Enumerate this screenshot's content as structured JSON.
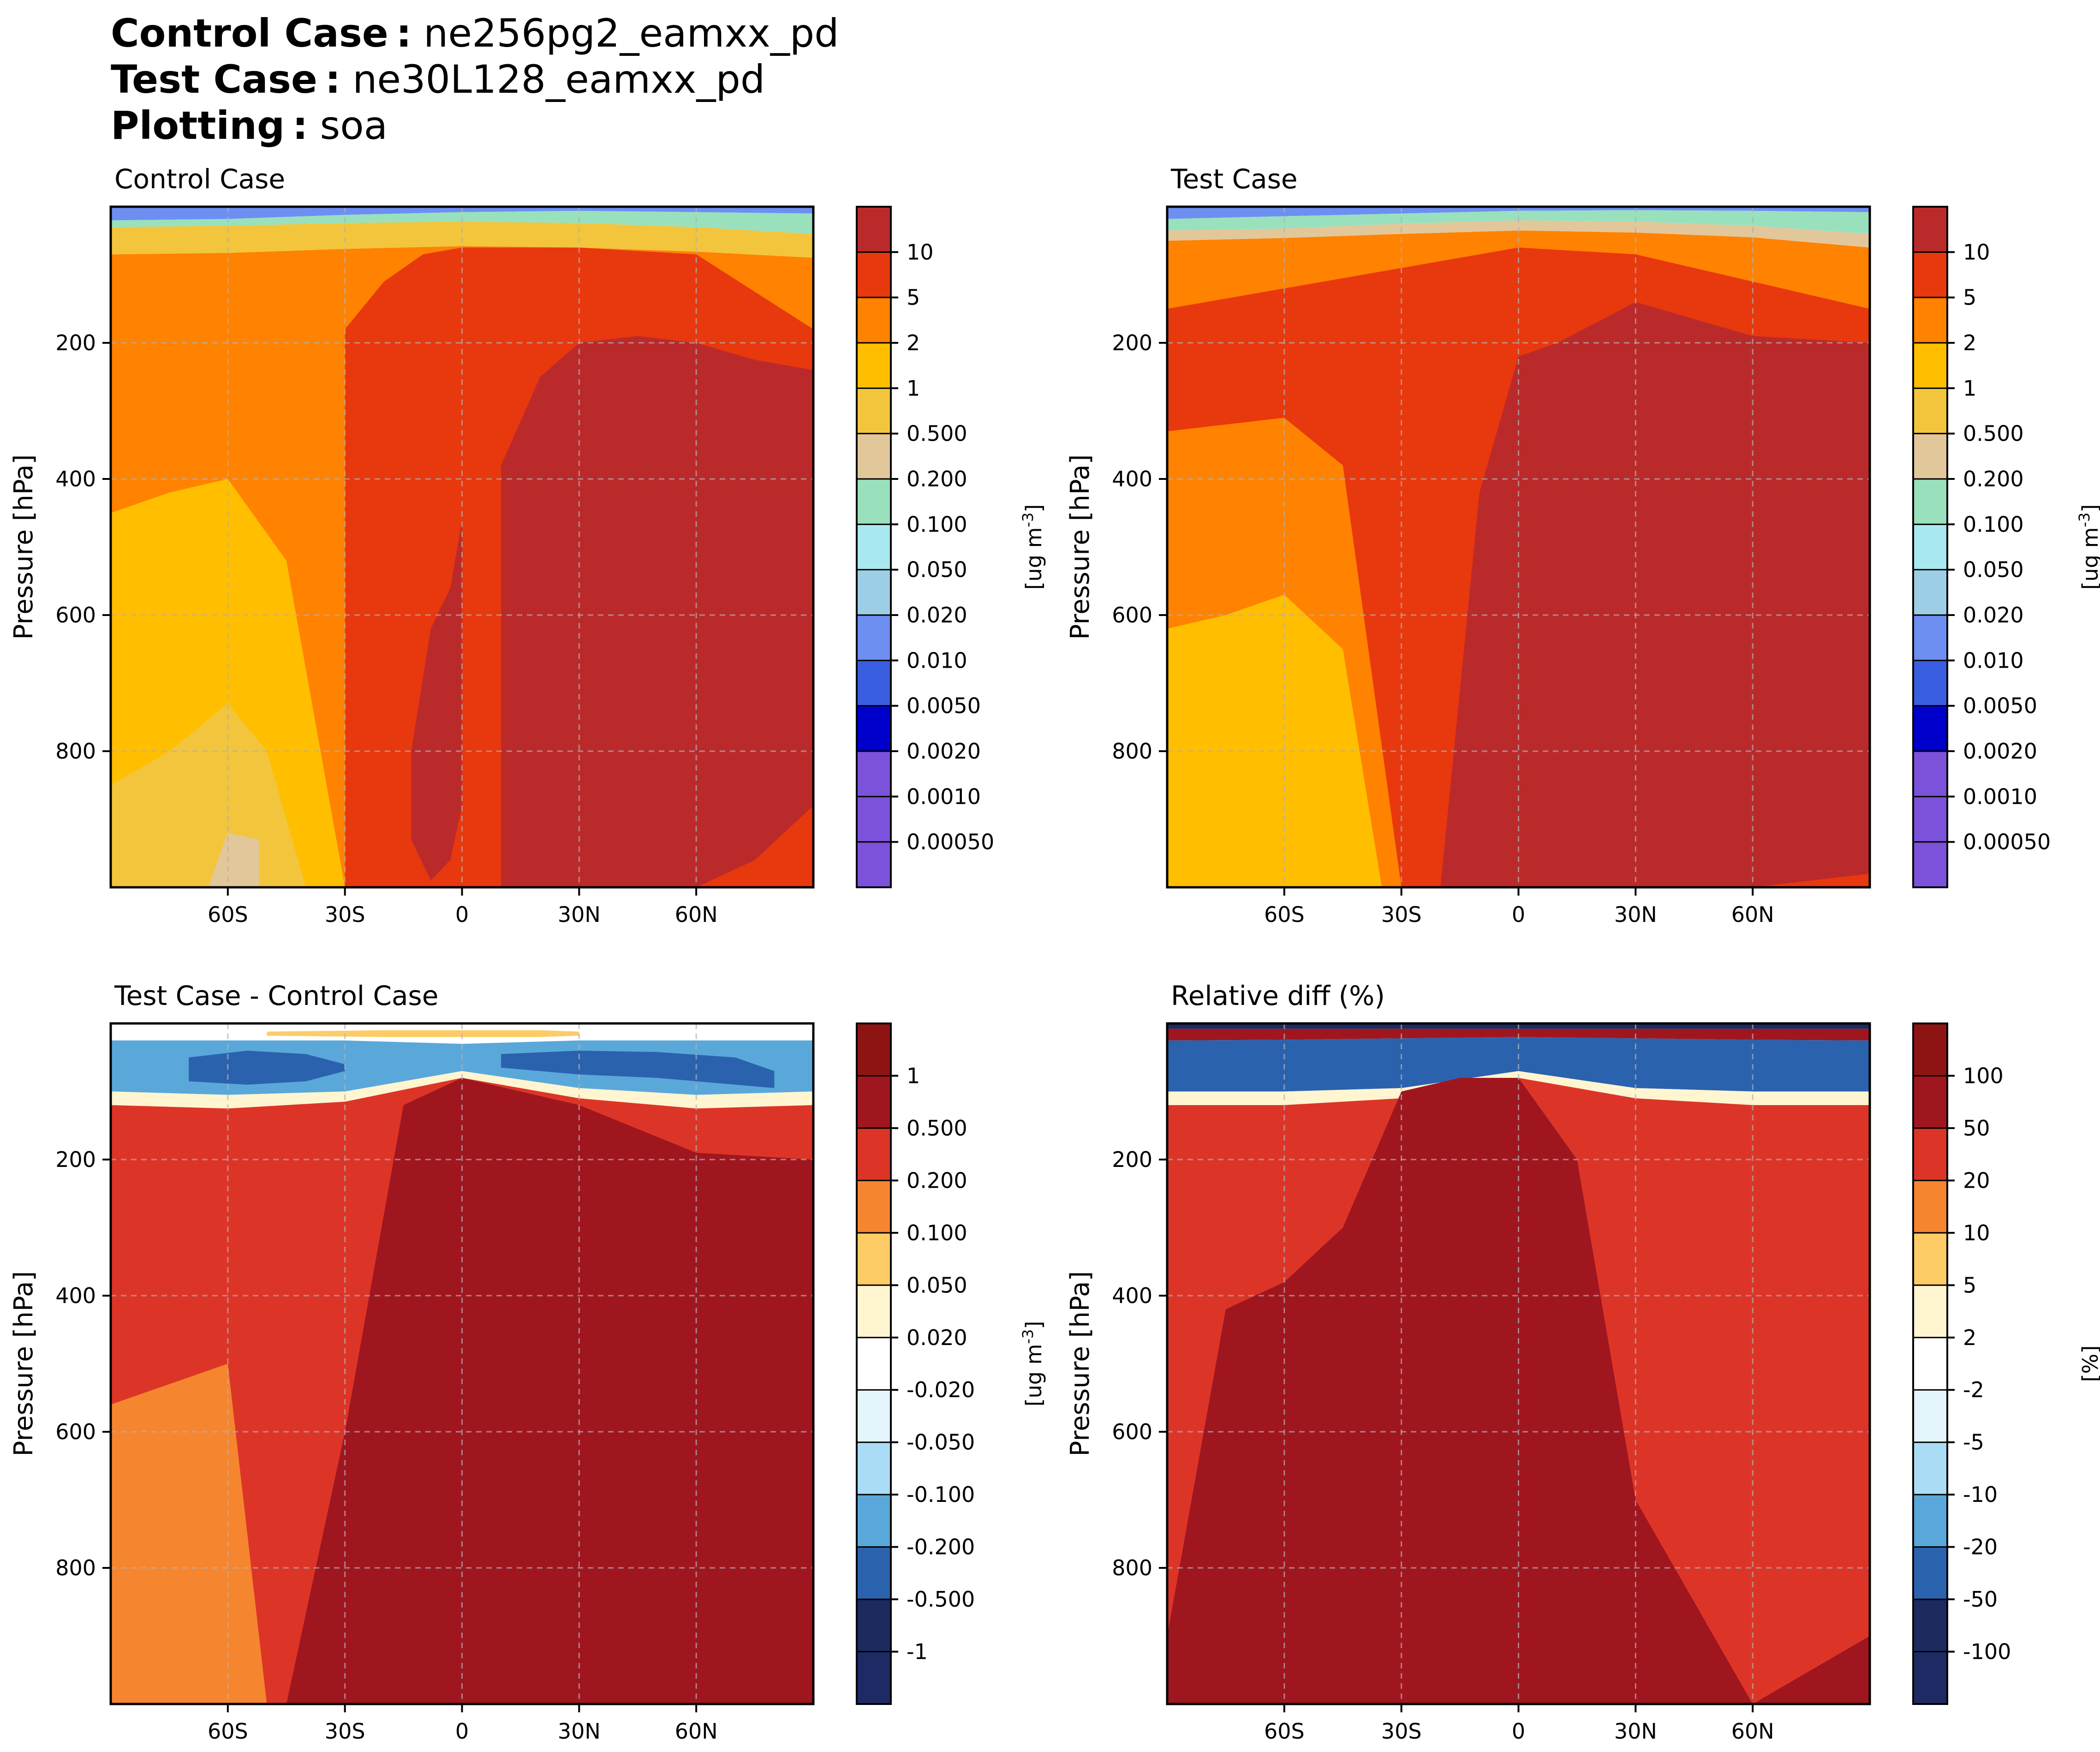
{
  "header": {
    "control_key": "Control Case :",
    "control_val": "ne256pg2_eamxx_pd",
    "test_key": "Test Case :",
    "test_val": "ne30L128_eamxx_pd",
    "plot_key": "Plotting :",
    "plot_val": "soa"
  },
  "colors": {
    "soa_palette": [
      "#7b52d9",
      "#0000cc",
      "#3a5ee0",
      "#6d8ff2",
      "#9ccfe6",
      "#a8e8f0",
      "#99e0bd",
      "#e2c79b",
      "#f2c53d",
      "#ffbe00",
      "#ff8200",
      "#e8380e",
      "#bb2a2a"
    ],
    "diff_palette": [
      "#1d2a63",
      "#1c2a5e",
      "#2b62ae",
      "#5aa8da",
      "#aadcf5",
      "#e3f5fb",
      "#ffffff",
      "#fff5d0",
      "#fdcc66",
      "#f6852f",
      "#dc3528",
      "#a0161f",
      "#8e1414"
    ]
  },
  "chart_data": [
    {
      "type": "contour",
      "title": "Control Case",
      "ylabel": "Pressure [hPa]",
      "xlabel": "",
      "xlim": [
        -90,
        90
      ],
      "ylim": [
        1000,
        0
      ],
      "x_ticks": [
        -60,
        -30,
        0,
        30,
        60
      ],
      "x_tick_labels": [
        "60S",
        "30S",
        "0",
        "30N",
        "60N"
      ],
      "y_ticks": [
        200,
        400,
        600,
        800
      ],
      "y_tick_labels": [
        "200",
        "400",
        "600",
        "800"
      ],
      "grid": true,
      "colorbar_label": "[ug m$^{-3}$]",
      "colorbar_levels": [
        "10",
        "5",
        "2",
        "1",
        "0.500",
        "0.200",
        "0.100",
        "0.050",
        "0.020",
        "0.010",
        "0.0050",
        "0.0020",
        "0.0010",
        "0.00050"
      ],
      "regions": [
        {
          "name": "top-low",
          "level": "0.0020",
          "x": [
            -90,
            -60,
            -30,
            0,
            30,
            60,
            90
          ],
          "y": [
            0,
            0,
            0,
            0,
            0,
            0,
            0
          ],
          "y2": [
            20,
            18,
            12,
            8,
            6,
            8,
            10
          ]
        },
        {
          "name": "upper-cyan",
          "level": "0.020",
          "x": [
            -90,
            -60,
            -30,
            0,
            30,
            60,
            90
          ],
          "y": [
            20,
            18,
            12,
            8,
            6,
            8,
            10
          ],
          "y2": [
            30,
            28,
            24,
            22,
            24,
            30,
            40
          ]
        },
        {
          "name": "upper-tan",
          "level": "0.100",
          "x": [
            -90,
            -60,
            -30,
            0,
            30,
            60,
            90
          ],
          "y": [
            30,
            28,
            24,
            22,
            24,
            30,
            40
          ],
          "y2": [
            70,
            68,
            62,
            58,
            60,
            66,
            75
          ]
        },
        {
          "name": "yellow",
          "level": "0.500",
          "x": [
            -90,
            -60,
            -30,
            0,
            30,
            60,
            90
          ],
          "y": [
            70,
            68,
            62,
            58,
            60,
            66,
            75
          ],
          "y2": [
            1000,
            1000,
            1000,
            1000,
            1000,
            1000,
            1000
          ]
        },
        {
          "name": "orange-band",
          "level": "1",
          "x": [
            -30,
            -20,
            -10,
            0,
            10,
            30,
            60,
            90
          ],
          "y": [
            180,
            110,
            70,
            60,
            60,
            60,
            70,
            180
          ],
          "y2": [
            1000,
            1000,
            1000,
            1000,
            1000,
            1000,
            1000,
            1000
          ]
        },
        {
          "name": "red-north",
          "level": "2",
          "x": [
            10,
            20,
            30,
            45,
            60,
            75,
            90
          ],
          "y": [
            380,
            250,
            200,
            190,
            200,
            225,
            240
          ],
          "y2": [
            1000,
            1000,
            1000,
            1000,
            1000,
            960,
            880
          ]
        },
        {
          "name": "red-core",
          "level": "2",
          "x": [
            -13,
            -8,
            -3,
            0
          ],
          "y": [
            800,
            620,
            560,
            460
          ],
          "y2": [
            930,
            990,
            960,
            880
          ]
        },
        {
          "name": "pale-south",
          "level": "0.200",
          "x": [
            -90,
            -75,
            -60,
            -45,
            -30
          ],
          "y": [
            450,
            420,
            400,
            520,
            1000
          ],
          "y2": [
            1000,
            1000,
            1000,
            1000,
            1000
          ]
        },
        {
          "name": "tan-south",
          "level": "0.100",
          "x": [
            -90,
            -75,
            -60,
            -50,
            -40
          ],
          "y": [
            850,
            800,
            730,
            800,
            1000
          ],
          "y2": [
            1000,
            1000,
            1000,
            1000,
            1000
          ]
        },
        {
          "name": "green-south",
          "level": "0.050",
          "x": [
            -65,
            -60,
            -52
          ],
          "y": [
            1000,
            920,
            930
          ],
          "y2": [
            1000,
            1000,
            1000
          ]
        }
      ]
    },
    {
      "type": "contour",
      "title": "Test Case",
      "ylabel": "Pressure [hPa]",
      "xlabel": "",
      "xlim": [
        -90,
        90
      ],
      "ylim": [
        1000,
        0
      ],
      "x_ticks": [
        -60,
        -30,
        0,
        30,
        60
      ],
      "x_tick_labels": [
        "60S",
        "30S",
        "0",
        "30N",
        "60N"
      ],
      "y_ticks": [
        200,
        400,
        600,
        800
      ],
      "y_tick_labels": [
        "200",
        "400",
        "600",
        "800"
      ],
      "grid": true,
      "colorbar_label": "[ug m$^{-3}$]",
      "colorbar_levels": [
        "10",
        "5",
        "2",
        "1",
        "0.500",
        "0.200",
        "0.100",
        "0.050",
        "0.020",
        "0.010",
        "0.0050",
        "0.0020",
        "0.0010",
        "0.00050"
      ],
      "regions": [
        {
          "name": "top-low",
          "level": "0.0020",
          "x": [
            -90,
            -60,
            -30,
            0,
            30,
            60,
            90
          ],
          "y": [
            0,
            0,
            0,
            0,
            0,
            0,
            0
          ],
          "y2": [
            18,
            14,
            10,
            6,
            5,
            6,
            8
          ]
        },
        {
          "name": "upper-cyan",
          "level": "0.020",
          "x": [
            -90,
            -60,
            -30,
            0,
            30,
            60,
            90
          ],
          "y": [
            18,
            14,
            10,
            6,
            5,
            6,
            8
          ],
          "y2": [
            35,
            32,
            25,
            20,
            22,
            28,
            40
          ]
        },
        {
          "name": "upper-green",
          "level": "0.050",
          "x": [
            -90,
            -60,
            -30,
            0,
            30,
            60,
            90
          ],
          "y": [
            35,
            32,
            25,
            20,
            22,
            28,
            40
          ],
          "y2": [
            50,
            46,
            40,
            35,
            38,
            45,
            60
          ]
        },
        {
          "name": "yellow",
          "level": "0.500",
          "x": [
            -90,
            -60,
            -30,
            0,
            30,
            60,
            90
          ],
          "y": [
            50,
            46,
            40,
            35,
            38,
            45,
            60
          ],
          "y2": [
            1000,
            1000,
            1000,
            1000,
            1000,
            1000,
            1000
          ]
        },
        {
          "name": "orange",
          "level": "1",
          "x": [
            -90,
            -60,
            -30,
            0,
            30,
            60,
            90
          ],
          "y": [
            150,
            120,
            90,
            60,
            70,
            110,
            150
          ],
          "y2": [
            1000,
            1000,
            1000,
            1000,
            1000,
            1000,
            1000
          ]
        },
        {
          "name": "red",
          "level": "2",
          "x": [
            -20,
            -10,
            0,
            10,
            30,
            60,
            90
          ],
          "y": [
            1000,
            420,
            220,
            200,
            140,
            190,
            200
          ],
          "y2": [
            1000,
            1000,
            1000,
            1000,
            1000,
            1000,
            980
          ]
        },
        {
          "name": "yellow-south",
          "level": "0.500",
          "x": [
            -90,
            -75,
            -60,
            -45,
            -30
          ],
          "y": [
            330,
            320,
            310,
            380,
            1000
          ],
          "y2": [
            1000,
            1000,
            1000,
            1000,
            1000
          ]
        },
        {
          "name": "pale-south",
          "level": "0.200",
          "x": [
            -90,
            -75,
            -60,
            -45,
            -35
          ],
          "y": [
            620,
            600,
            570,
            650,
            1000
          ],
          "y2": [
            1000,
            1000,
            1000,
            1000,
            1000
          ]
        }
      ]
    },
    {
      "type": "contour",
      "title": "Test Case - Control Case",
      "ylabel": "Pressure [hPa]",
      "xlabel": "",
      "xlim": [
        -90,
        90
      ],
      "ylim": [
        1000,
        0
      ],
      "x_ticks": [
        -60,
        -30,
        0,
        30,
        60
      ],
      "x_tick_labels": [
        "60S",
        "30S",
        "0",
        "30N",
        "60N"
      ],
      "y_ticks": [
        200,
        400,
        600,
        800
      ],
      "y_tick_labels": [
        "200",
        "400",
        "600",
        "800"
      ],
      "grid": true,
      "colorbar_label": "[ug m$^{-3}$]",
      "colorbar_levels": [
        "1",
        "0.500",
        "0.200",
        "0.100",
        "0.050",
        "0.020",
        "-0.020",
        "-0.050",
        "-0.100",
        "-0.200",
        "-0.500",
        "-1"
      ],
      "regions": [
        {
          "name": "blue-upper",
          "level": "-0.200",
          "x": [
            -90,
            -60,
            -30,
            0,
            30,
            60,
            90
          ],
          "y": [
            25,
            25,
            25,
            30,
            25,
            25,
            25
          ],
          "y2": [
            100,
            105,
            100,
            70,
            95,
            105,
            100
          ]
        },
        {
          "name": "dark-blue-left",
          "level": "-0.500",
          "x": [
            -70,
            -55,
            -40,
            -30
          ],
          "y": [
            50,
            40,
            45,
            60
          ],
          "y2": [
            85,
            90,
            85,
            70
          ]
        },
        {
          "name": "dark-blue-right",
          "level": "-0.500",
          "x": [
            10,
            30,
            50,
            70,
            80
          ],
          "y": [
            45,
            40,
            42,
            50,
            70
          ],
          "y2": [
            65,
            75,
            80,
            90,
            95
          ]
        },
        {
          "name": "white-band",
          "level": "0.020",
          "x": [
            -90,
            -60,
            -30,
            0,
            30,
            60,
            90
          ],
          "y": [
            100,
            105,
            100,
            70,
            95,
            105,
            100
          ],
          "y2": [
            120,
            125,
            115,
            80,
            110,
            125,
            120
          ]
        },
        {
          "name": "red",
          "level": "0.200",
          "x": [
            -90,
            -60,
            -30,
            0,
            30,
            60,
            90
          ],
          "y": [
            120,
            125,
            115,
            80,
            110,
            125,
            120
          ],
          "y2": [
            1000,
            1000,
            1000,
            1000,
            1000,
            1000,
            1000
          ]
        },
        {
          "name": "dark-red",
          "level": "0.500",
          "x": [
            -45,
            -30,
            -15,
            0,
            30,
            60,
            90
          ],
          "y": [
            1000,
            600,
            120,
            80,
            120,
            190,
            200
          ],
          "y2": [
            1000,
            1000,
            1000,
            1000,
            1000,
            1000,
            1000
          ]
        },
        {
          "name": "orange-south",
          "level": "0.100",
          "x": [
            -90,
            -75,
            -60,
            -50
          ],
          "y": [
            560,
            530,
            500,
            1000
          ],
          "y2": [
            1000,
            1000,
            1000,
            1000
          ]
        },
        {
          "name": "top-tint",
          "level": "0.050",
          "x": [
            -50,
            -20,
            0,
            20,
            30
          ],
          "y": [
            12,
            10,
            10,
            10,
            12
          ],
          "y2": [
            18,
            20,
            20,
            20,
            18
          ]
        }
      ]
    },
    {
      "type": "contour",
      "title": "Relative diff (%)",
      "ylabel": "Pressure [hPa]",
      "xlabel": "",
      "xlim": [
        -90,
        90
      ],
      "ylim": [
        1000,
        0
      ],
      "x_ticks": [
        -60,
        -30,
        0,
        30,
        60
      ],
      "x_tick_labels": [
        "60S",
        "30S",
        "0",
        "30N",
        "60N"
      ],
      "y_ticks": [
        200,
        400,
        600,
        800
      ],
      "y_tick_labels": [
        "200",
        "400",
        "600",
        "800"
      ],
      "grid": true,
      "colorbar_label": "[%]",
      "colorbar_levels": [
        "100",
        "50",
        "20",
        "10",
        "5",
        "2",
        "-2",
        "-5",
        "-10",
        "-20",
        "-50",
        "-100"
      ],
      "regions": [
        {
          "name": "top-blue",
          "level": "-100",
          "x": [
            -90,
            -60,
            -30,
            0,
            30,
            60,
            90
          ],
          "y": [
            0,
            0,
            0,
            0,
            0,
            0,
            0
          ],
          "y2": [
            8,
            8,
            8,
            8,
            8,
            8,
            8
          ]
        },
        {
          "name": "top-red",
          "level": "50",
          "x": [
            -90,
            -60,
            -30,
            0,
            30,
            60,
            90
          ],
          "y": [
            8,
            8,
            8,
            8,
            8,
            8,
            8
          ],
          "y2": [
            25,
            24,
            22,
            20,
            22,
            24,
            25
          ]
        },
        {
          "name": "blue-upper",
          "level": "-50",
          "x": [
            -90,
            -60,
            -30,
            0,
            30,
            60,
            90
          ],
          "y": [
            25,
            24,
            22,
            20,
            22,
            24,
            25
          ],
          "y2": [
            100,
            100,
            95,
            70,
            95,
            100,
            100
          ]
        },
        {
          "name": "white-band",
          "level": "2",
          "x": [
            -90,
            -60,
            -30,
            0,
            30,
            60,
            90
          ],
          "y": [
            100,
            100,
            95,
            70,
            95,
            100,
            100
          ],
          "y2": [
            120,
            120,
            110,
            80,
            110,
            120,
            120
          ]
        },
        {
          "name": "red",
          "level": "20",
          "x": [
            -90,
            -60,
            -30,
            0,
            30,
            60,
            90
          ],
          "y": [
            120,
            120,
            110,
            80,
            110,
            120,
            120
          ],
          "y2": [
            1000,
            1000,
            1000,
            1000,
            1000,
            1000,
            1000
          ]
        },
        {
          "name": "dark-red",
          "level": "50",
          "x": [
            -90,
            -75,
            -60,
            -45,
            -30,
            -15,
            0,
            15,
            30,
            60,
            90
          ],
          "y": [
            900,
            420,
            380,
            300,
            100,
            80,
            80,
            200,
            700,
            1000,
            900
          ],
          "y2": [
            1000,
            1000,
            1000,
            1000,
            1000,
            1000,
            1000,
            1000,
            1000,
            1000,
            1000
          ]
        }
      ]
    }
  ]
}
